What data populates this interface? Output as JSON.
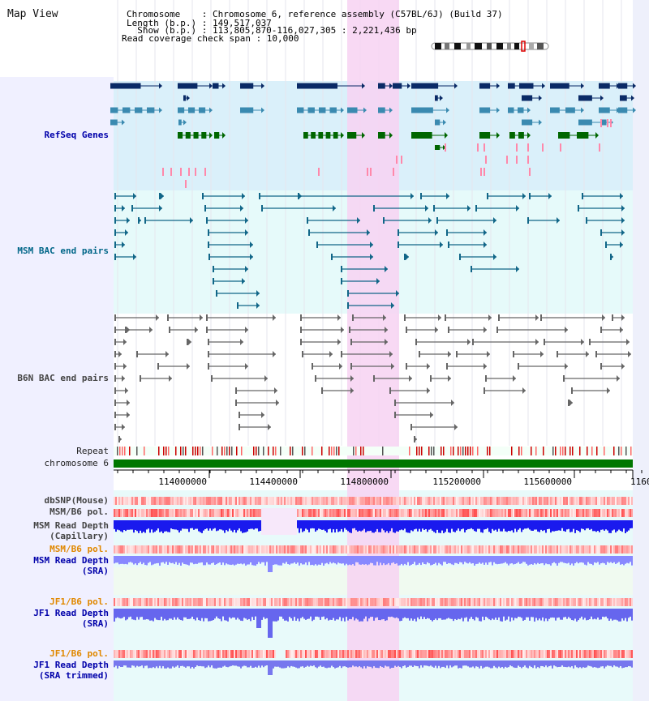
{
  "title": "Map View",
  "header": {
    "chromosome_line": "Chromosome    : Chromosome 6, reference assembly (C57BL/6J) (Build 37)",
    "length_line": "Length (b.p.) : 149,517,037",
    "show_line": "  Show (b.p.) : 113,805,870-116,027,305 : 2,221,436 bp",
    "span_line": "Read coverage check span : 10,000"
  },
  "tracks": {
    "refseq": "RefSeq Genes",
    "msm_bac": "MSM BAC end pairs",
    "b6n_bac": "B6N BAC end pairs",
    "repeat": "Repeat",
    "chromosome": "chromosome 6",
    "dbsnp": "dbSNP(Mouse)",
    "msm_b6_pol": "MSM/B6 pol.",
    "msm_depth_cap_1": "MSM Read Depth",
    "msm_depth_cap_2": "(Capillary)",
    "msm_b6_pol_2": "MSM/B6 pol.",
    "msm_depth_sra_1": "MSM Read Depth",
    "msm_depth_sra_2": "(SRA)",
    "jf1_b6_pol": "JF1/B6 pol.",
    "jf1_depth_sra_1": "JF1 Read Depth",
    "jf1_depth_sra_2": "(SRA)",
    "jf1_b6_pol_2": "JF1/B6 pol.",
    "jf1_depth_trim_1": "JF1 Read Depth",
    "jf1_depth_trim_2": "(SRA trimmed)"
  },
  "ruler": {
    "ticks": [
      "114000000",
      "114400000",
      "114800000",
      "115200000",
      "115600000",
      "1160"
    ]
  },
  "colors": {
    "refseq_bg": "#daf0fa",
    "msm_bg": "#e6fafa",
    "b6n_bg": "#ffffff",
    "highlight": "#f7d2f2",
    "chromosome_bar": "#007700",
    "depth_blue": "#1a1aee",
    "depth_light": "#8888ff"
  }
}
